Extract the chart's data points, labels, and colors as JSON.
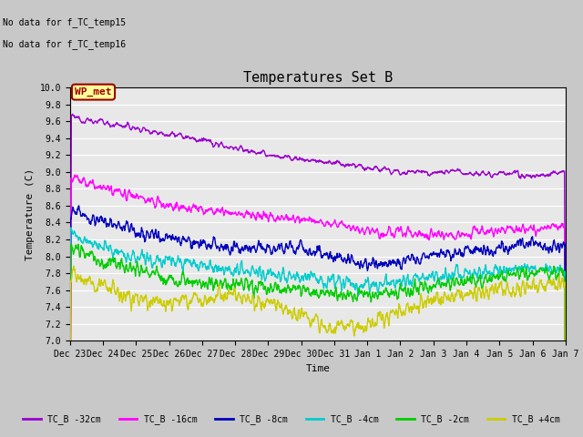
{
  "title": "Temperatures Set B",
  "xlabel": "Time",
  "ylabel": "Temperature (C)",
  "annotation_lines": [
    "No data for f_TC_temp15",
    "No data for f_TC_temp16"
  ],
  "wp_met_label": "WP_met",
  "ylim": [
    7.0,
    10.0
  ],
  "yticks": [
    7.0,
    7.2,
    7.4,
    7.6,
    7.8,
    8.0,
    8.2,
    8.4,
    8.6,
    8.8,
    9.0,
    9.2,
    9.4,
    9.6,
    9.8,
    10.0
  ],
  "colors": [
    "#9900cc",
    "#ff00ff",
    "#0000bb",
    "#00cccc",
    "#00cc00",
    "#cccc00"
  ],
  "labels": [
    "TC_B -32cm",
    "TC_B -16cm",
    "TC_B -8cm",
    "TC_B -4cm",
    "TC_B -2cm",
    "TC_B +4cm"
  ],
  "x_tick_labels": [
    "Dec 23",
    "Dec 24",
    "Dec 25",
    "Dec 26",
    "Dec 27",
    "Dec 28",
    "Dec 29",
    "Dec 30",
    "Dec 31",
    "Jan 1",
    "Jan 2",
    "Jan 3",
    "Jan 4",
    "Jan 5",
    "Jan 6",
    "Jan 7"
  ],
  "n_points": 1440,
  "background_color": "#e8e8e8",
  "grid_color": "#ffffff",
  "fig_bg": "#c8c8c8"
}
